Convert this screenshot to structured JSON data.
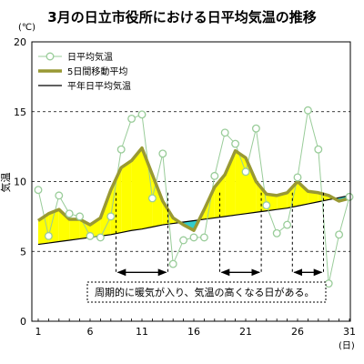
{
  "chart_data": {
    "type": "line",
    "title": "3月の日立市役所における日平均気温の推移",
    "ylabel": "気温",
    "y_unit": "(℃)",
    "x_unit": "(日)",
    "ylim": [
      0,
      20
    ],
    "yticks": [
      0,
      5,
      10,
      15,
      20
    ],
    "xlim": [
      1,
      31
    ],
    "xticks": [
      1,
      6,
      11,
      16,
      21,
      26,
      31
    ],
    "grid": "horizontal-dashed",
    "legend_position": "top-left",
    "x": [
      1,
      2,
      3,
      4,
      5,
      6,
      7,
      8,
      9,
      10,
      11,
      12,
      13,
      14,
      15,
      16,
      17,
      18,
      19,
      20,
      21,
      22,
      23,
      24,
      25,
      26,
      27,
      28,
      29,
      30,
      31
    ],
    "series": [
      {
        "name": "日平均気温",
        "style": "markers",
        "color": "#99cc99",
        "values": [
          9.4,
          6.1,
          9.0,
          7.7,
          7.5,
          6.1,
          6.0,
          7.5,
          12.3,
          14.5,
          14.8,
          8.8,
          12.0,
          4.1,
          5.8,
          6.0,
          6.0,
          10.4,
          13.5,
          12.7,
          10.7,
          13.8,
          8.3,
          6.3,
          6.9,
          10.3,
          15.1,
          12.3,
          2.7,
          6.2,
          8.9
        ]
      },
      {
        "name": "5日間移動平均",
        "style": "thick-line",
        "color": "#999933",
        "values": [
          7.2,
          7.7,
          8.0,
          7.3,
          7.3,
          6.9,
          7.4,
          9.4,
          11.0,
          11.5,
          12.4,
          10.5,
          8.6,
          7.4,
          6.9,
          6.5,
          8.0,
          9.6,
          10.5,
          12.2,
          11.7,
          10.0,
          9.1,
          9.0,
          9.2,
          10.0,
          9.3,
          9.2,
          9.0,
          8.6,
          8.8
        ]
      },
      {
        "name": "平年日平均気温",
        "style": "thin-line",
        "color": "#000000",
        "values": [
          5.5,
          5.6,
          5.7,
          5.8,
          5.9,
          6.0,
          6.1,
          6.2,
          6.35,
          6.5,
          6.6,
          6.75,
          6.9,
          7.0,
          7.1,
          7.2,
          7.3,
          7.4,
          7.5,
          7.6,
          7.7,
          7.8,
          7.9,
          8.0,
          8.1,
          8.25,
          8.4,
          8.55,
          8.7,
          8.85,
          9.0
        ]
      }
    ],
    "fill_colors": {
      "above_normal": "#ffff00",
      "below_normal": "#33cccc"
    },
    "periods": [
      [
        8.5,
        13.5
      ],
      [
        18.5,
        22.5
      ],
      [
        25.5,
        28.5
      ]
    ],
    "annotation": "周期的に暖気が入り、気温の高くなる日がある。"
  }
}
